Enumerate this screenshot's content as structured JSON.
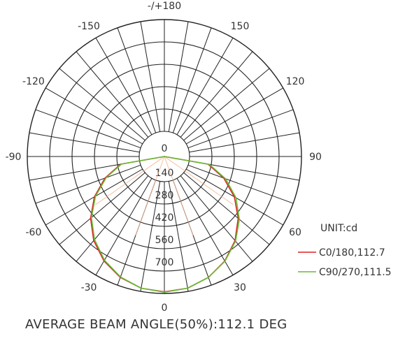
{
  "chart_data": {
    "type": "polar-line",
    "unit_label": "UNIT:cd",
    "footer": "AVERAGE BEAM ANGLE(50%):112.1 DEG",
    "angle_labels": [
      {
        "deg": 180,
        "text": "-/+180"
      },
      {
        "deg": 150,
        "text": "150"
      },
      {
        "deg": 120,
        "text": "120"
      },
      {
        "deg": 90,
        "text": "90"
      },
      {
        "deg": 60,
        "text": "60"
      },
      {
        "deg": 30,
        "text": "30"
      },
      {
        "deg": 0,
        "text": "0"
      },
      {
        "deg": -30,
        "text": "-30"
      },
      {
        "deg": -60,
        "text": "-60"
      },
      {
        "deg": -90,
        "text": "-90"
      },
      {
        "deg": -120,
        "text": "-120"
      },
      {
        "deg": -150,
        "text": "-150"
      }
    ],
    "radial_max": 700,
    "radial_ticks": [
      "0",
      "140",
      "280",
      "420",
      "560",
      "700"
    ],
    "series": [
      {
        "name": "C0/180,112.7",
        "color": "#dd2222",
        "angles": [
          -90,
          -80,
          -70,
          -60,
          -50,
          -40,
          -30,
          -20,
          -10,
          0,
          10,
          20,
          30,
          40,
          50,
          60,
          70,
          80,
          90
        ],
        "values": [
          0,
          120,
          238,
          348,
          445,
          530,
          598,
          648,
          680,
          690,
          680,
          648,
          598,
          530,
          445,
          348,
          238,
          120,
          0
        ]
      },
      {
        "name": "C90/270,111.5",
        "color": "#66bb33",
        "angles": [
          -90,
          -80,
          -70,
          -60,
          -50,
          -40,
          -30,
          -20,
          -10,
          0,
          10,
          20,
          30,
          40,
          50,
          60,
          70,
          80,
          90
        ],
        "values": [
          0,
          115,
          230,
          340,
          438,
          522,
          592,
          645,
          680,
          692,
          680,
          648,
          600,
          535,
          455,
          360,
          250,
          128,
          0
        ]
      }
    ]
  }
}
